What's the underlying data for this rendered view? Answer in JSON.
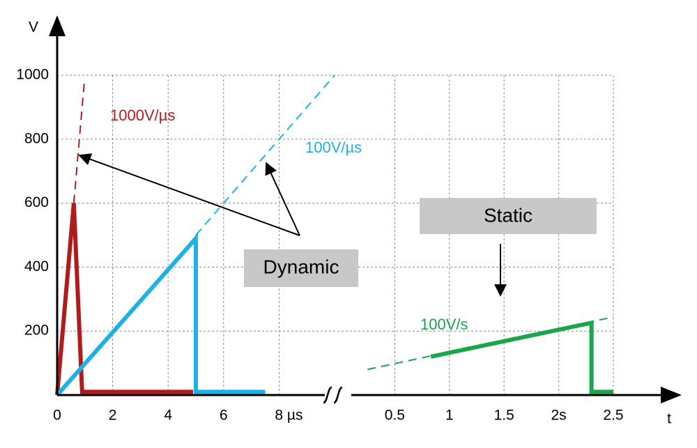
{
  "chart_data": [
    {
      "type": "line",
      "ylabel": "V",
      "xlim": [
        0,
        10
      ],
      "xticks": [
        0,
        2,
        4,
        6,
        {
          "value": 8,
          "label": "8 µs"
        }
      ],
      "ylim": [
        0,
        1000
      ],
      "yticks": [
        200,
        400,
        600,
        800,
        1000
      ],
      "grid": true,
      "series": [
        {
          "color": "#b01c1c",
          "dashed": false,
          "x": [
            0,
            0.6,
            0.9,
            4.9
          ],
          "values": [
            0,
            600,
            10,
            10
          ]
        },
        {
          "color": "#b01c1c",
          "dashed": true,
          "x": [
            0.6,
            0.98
          ],
          "values": [
            600,
            980
          ]
        },
        {
          "color": "#1fb0e6",
          "dashed": false,
          "x": [
            0,
            5,
            5,
            7.5
          ],
          "values": [
            0,
            490,
            10,
            10
          ]
        },
        {
          "color": "#1fb0e6",
          "dashed": true,
          "x": [
            5,
            10
          ],
          "values": [
            500,
            1000
          ]
        }
      ],
      "annotations": [
        "1000V/µs",
        "100V/µs",
        "Dynamic"
      ]
    },
    {
      "type": "line",
      "xlabel": "t",
      "xlim": [
        0,
        2.5
      ],
      "xticks": [
        0.5,
        1,
        1.5,
        {
          "value": 2,
          "label": "2s"
        },
        2.5
      ],
      "ylim": [
        0,
        1000
      ],
      "grid": true,
      "series": [
        {
          "color": "#1aa64a",
          "dashed": false,
          "x": [
            0.83,
            2.3,
            2.3,
            2.5
          ],
          "values": [
            120,
            226,
            10,
            10
          ]
        },
        {
          "color": "#1aa64a",
          "dashed": true,
          "x": [
            0.25,
            2.5
          ],
          "values": [
            80,
            244
          ]
        }
      ],
      "annotations": [
        "100V/s",
        "Static"
      ]
    }
  ]
}
